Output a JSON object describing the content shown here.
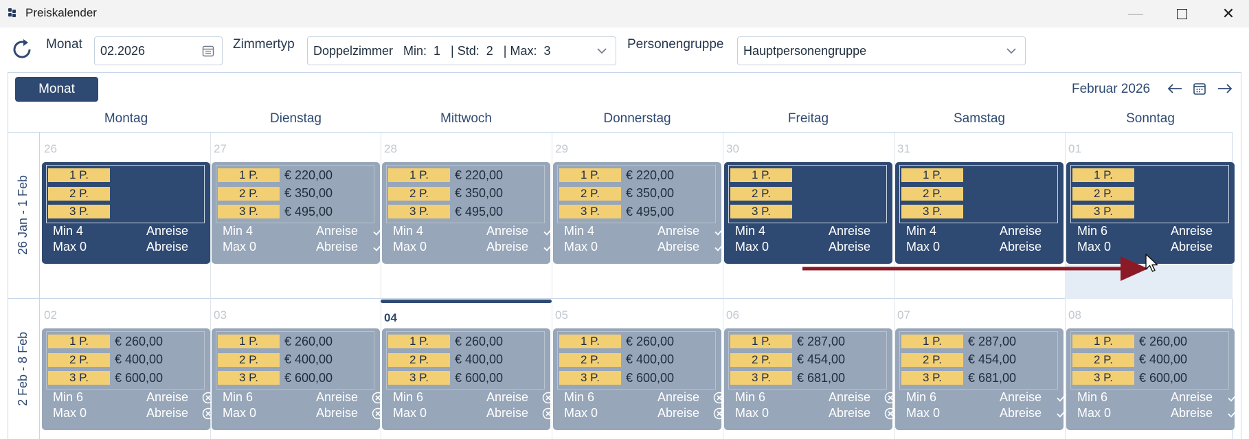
{
  "window": {
    "title": "Preiskalender"
  },
  "toolbar": {
    "month_label": "Monat",
    "month_value": "02.2026",
    "roomtype_label": "Zimmertyp",
    "roomtype_value": "Doppelzimmer   Min:  1   | Std:  2   | Max:  3",
    "group_label": "Personengruppe",
    "group_value": "Hauptpersonengruppe"
  },
  "calendar": {
    "view_button": "Monat",
    "title": "Februar 2026",
    "days": [
      "Montag",
      "Dienstag",
      "Mittwoch",
      "Donnerstag",
      "Freitag",
      "Samstag",
      "Sonntag"
    ],
    "persons": [
      "1 P.",
      "2 P.",
      "3 P."
    ],
    "arrival_label": "Anreise",
    "departure_label": "Abreise",
    "weeks": [
      {
        "label": "26 Jan - 1 Feb",
        "cells": [
          {
            "date": "26",
            "style": "dark",
            "prices": [
              "",
              "",
              ""
            ],
            "min": "Min  4",
            "max": "Max 0",
            "arrival_mark": "",
            "departure_mark": ""
          },
          {
            "date": "27",
            "style": "grey",
            "prices": [
              "€ 220,00",
              "€ 350,00",
              "€ 495,00"
            ],
            "min": "Min  4",
            "max": "Max 0",
            "arrival_mark": "check",
            "departure_mark": "check"
          },
          {
            "date": "28",
            "style": "grey",
            "prices": [
              "€ 220,00",
              "€ 350,00",
              "€ 495,00"
            ],
            "min": "Min  4",
            "max": "Max 0",
            "arrival_mark": "check",
            "departure_mark": "check"
          },
          {
            "date": "29",
            "style": "grey",
            "prices": [
              "€ 220,00",
              "€ 350,00",
              "€ 495,00"
            ],
            "min": "Min  4",
            "max": "Max 0",
            "arrival_mark": "check",
            "departure_mark": "check"
          },
          {
            "date": "30",
            "style": "dark",
            "prices": [
              "",
              "",
              ""
            ],
            "min": "Min  4",
            "max": "Max 0",
            "arrival_mark": "",
            "departure_mark": ""
          },
          {
            "date": "31",
            "style": "dark",
            "prices": [
              "",
              "",
              ""
            ],
            "min": "Min  4",
            "max": "Max 0",
            "arrival_mark": "",
            "departure_mark": ""
          },
          {
            "date": "01",
            "style": "dark",
            "prices": [
              "",
              "",
              ""
            ],
            "min": "Min  6",
            "max": "Max 0",
            "arrival_mark": "",
            "departure_mark": ""
          }
        ]
      },
      {
        "label": "2 Feb - 8 Feb",
        "cells": [
          {
            "date": "02",
            "style": "grey",
            "prices": [
              "€ 260,00",
              "€ 400,00",
              "€ 600,00"
            ],
            "min": "Min  6",
            "max": "Max 0",
            "arrival_mark": "cross",
            "departure_mark": "cross"
          },
          {
            "date": "03",
            "style": "grey",
            "prices": [
              "€ 260,00",
              "€ 400,00",
              "€ 600,00"
            ],
            "min": "Min  6",
            "max": "Max 0",
            "arrival_mark": "cross",
            "departure_mark": "cross"
          },
          {
            "date": "04",
            "style": "grey",
            "today": true,
            "prices": [
              "€ 260,00",
              "€ 400,00",
              "€ 600,00"
            ],
            "min": "Min  6",
            "max": "Max 0",
            "arrival_mark": "cross",
            "departure_mark": "cross"
          },
          {
            "date": "05",
            "style": "grey",
            "prices": [
              "€ 260,00",
              "€ 400,00",
              "€ 600,00"
            ],
            "min": "Min  6",
            "max": "Max 0",
            "arrival_mark": "cross",
            "departure_mark": "cross"
          },
          {
            "date": "06",
            "style": "grey",
            "prices": [
              "€ 287,00",
              "€ 454,00",
              "€ 681,00"
            ],
            "min": "Min  6",
            "max": "Max 0",
            "arrival_mark": "cross",
            "departure_mark": "cross"
          },
          {
            "date": "07",
            "style": "grey",
            "prices": [
              "€ 287,00",
              "€ 454,00",
              "€ 681,00"
            ],
            "min": "Min  6",
            "max": "Max 0",
            "arrival_mark": "check",
            "departure_mark": "check"
          },
          {
            "date": "08",
            "style": "grey",
            "prices": [
              "€ 260,00",
              "€ 400,00",
              "€ 600,00"
            ],
            "min": "Min  6",
            "max": "Max 0",
            "arrival_mark": "check",
            "departure_mark": "check"
          }
        ]
      }
    ]
  },
  "colors": {
    "accent": "#2f4a72",
    "card_dark": "#2f4a72",
    "card_grey": "#97a6b9",
    "badge": "#f3cf73",
    "annotation_arrow": "#8b1a26"
  },
  "icons": [
    "app-icon",
    "refresh-icon",
    "calendar-icon",
    "chevron-down-icon",
    "arrow-left-icon",
    "arrow-right-icon",
    "check-icon",
    "cross-circle-icon",
    "mouse-cursor-icon"
  ]
}
